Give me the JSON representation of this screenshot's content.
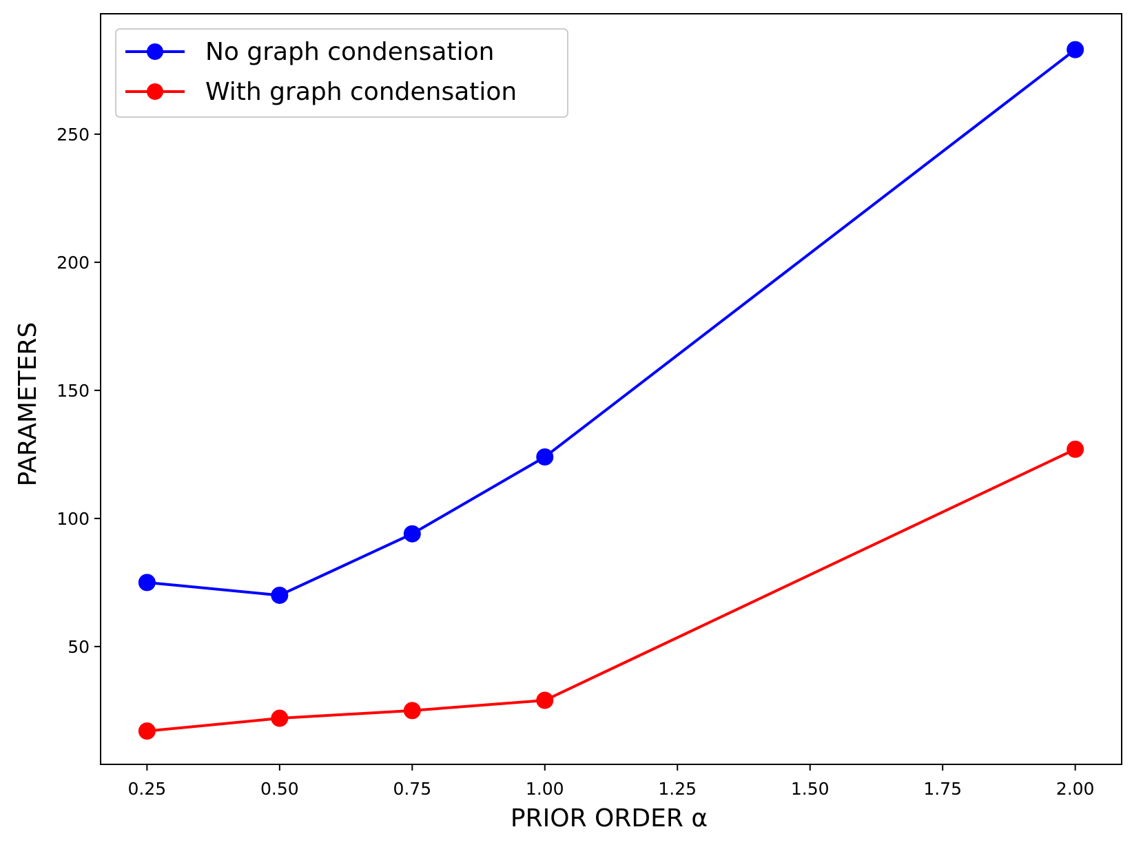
{
  "chart_data": {
    "type": "line",
    "title": "",
    "xlabel": "PRIOR ORDER α",
    "ylabel": "PARAMETERS",
    "x": [
      0.25,
      0.5,
      0.75,
      1.0,
      2.0
    ],
    "xlim": [
      0.1625,
      2.0875
    ],
    "ylim": [
      4,
      297
    ],
    "xticks": [
      0.25,
      0.5,
      0.75,
      1.0,
      1.25,
      1.5,
      1.75,
      2.0
    ],
    "xtick_labels": [
      "0.25",
      "0.50",
      "0.75",
      "1.00",
      "1.25",
      "1.50",
      "1.75",
      "2.00"
    ],
    "yticks": [
      50,
      100,
      150,
      200,
      250
    ],
    "ytick_labels": [
      "50",
      "100",
      "150",
      "200",
      "250"
    ],
    "grid": false,
    "legend_position": "top-left",
    "series": [
      {
        "name": "No graph condensation",
        "color": "#0000ff",
        "marker": "circle",
        "values": [
          75,
          70,
          94,
          124,
          283
        ]
      },
      {
        "name": "With graph condensation",
        "color": "#ff0000",
        "marker": "circle",
        "values": [
          17,
          22,
          25,
          29,
          127
        ]
      }
    ]
  }
}
